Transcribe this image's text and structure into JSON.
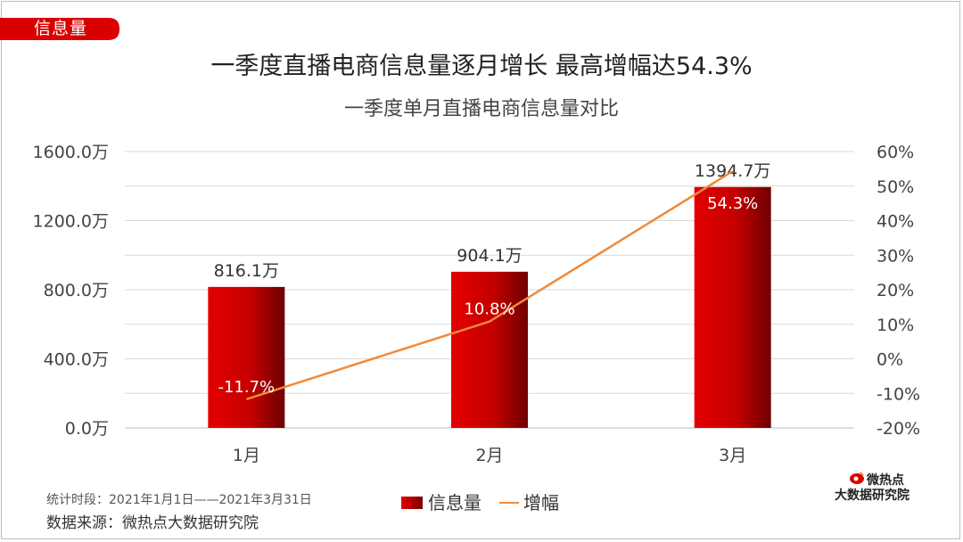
{
  "tag": {
    "label": "信息量"
  },
  "title": "一季度直播电商信息量逐月增长 最高增幅达54.3%",
  "subtitle": "一季度单月直播电商信息量对比",
  "chart_data": {
    "type": "bar",
    "categories": [
      "1月",
      "2月",
      "3月"
    ],
    "series": [
      {
        "name": "信息量",
        "type": "bar",
        "axis": "left",
        "values": [
          816.1,
          904.1,
          1394.7
        ],
        "labels": [
          "816.1万",
          "904.1万",
          "1394.7万"
        ]
      },
      {
        "name": "增幅",
        "type": "line",
        "axis": "right",
        "values": [
          -11.7,
          10.8,
          54.3
        ],
        "labels": [
          "-11.7%",
          "10.8%",
          "54.3%"
        ]
      }
    ],
    "left_axis": {
      "ylim": [
        0,
        1600
      ],
      "ticks": [
        "0.0万",
        "400.0万",
        "800.0万",
        "1200.0万",
        "1600.0万"
      ]
    },
    "right_axis": {
      "ylim": [
        -20,
        60
      ],
      "ticks": [
        "-20%",
        "-10%",
        "0%",
        "10%",
        "20%",
        "30%",
        "40%",
        "50%",
        "60%"
      ]
    },
    "grid": true,
    "legend": "bottom-center",
    "colors": {
      "bar": "#d40000",
      "bar_dark": "#7a0000",
      "line": "#f08a3a"
    }
  },
  "legend": {
    "bar_label": "信息量",
    "line_label": "增幅"
  },
  "footer": {
    "period": "统计时段：2021年1月1日——2021年3月31日",
    "source": "数据来源：微热点大数据研究院"
  },
  "logo": {
    "name": "微热点",
    "org": "大数据研究院"
  }
}
